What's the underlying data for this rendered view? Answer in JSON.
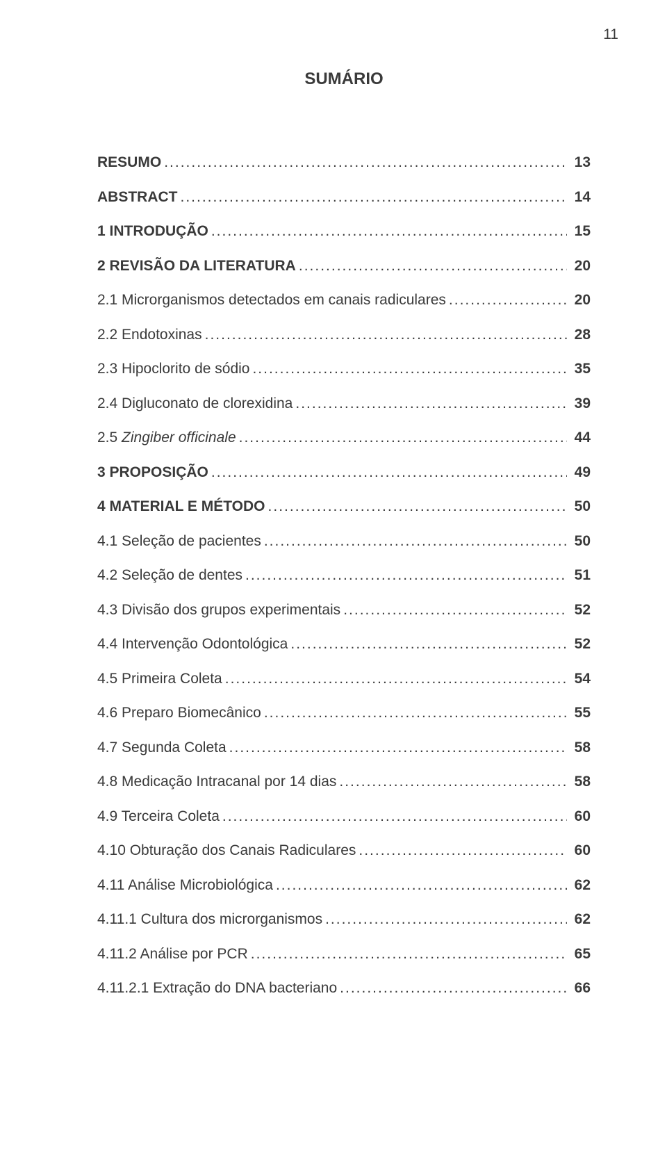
{
  "page_number": "11",
  "title": "SUMÁRIO",
  "text_color": "#3a3a3a",
  "background_color": "#ffffff",
  "font_size_body": 21,
  "font_size_title": 24,
  "entries": [
    {
      "label": "RESUMO",
      "page": "13",
      "bold": true
    },
    {
      "label": "ABSTRACT",
      "page": "14",
      "bold": true
    },
    {
      "label": "1 INTRODUÇÃO",
      "page": "15",
      "bold": true
    },
    {
      "label": "2 REVISÃO DA LITERATURA",
      "page": "20",
      "bold": true
    },
    {
      "label": "2.1 Microrganismos detectados em canais radiculares",
      "page": "20",
      "bold": false
    },
    {
      "label": "2.2 Endotoxinas",
      "page": "28",
      "bold": false
    },
    {
      "label": "2.3 Hipoclorito de sódio",
      "page": "35",
      "bold": false
    },
    {
      "label": "2.4 Digluconato de clorexidina",
      "page": "39",
      "bold": false
    },
    {
      "label_prefix": "2.5 ",
      "label_italic": "Zingiber officinale",
      "page": "44",
      "bold": false
    },
    {
      "label": "3 PROPOSIÇÃO",
      "page": "49",
      "bold": true
    },
    {
      "label": "4 MATERIAL E MÉTODO",
      "page": "50",
      "bold": true
    },
    {
      "label": "4.1 Seleção de pacientes",
      "page": "50",
      "bold": false
    },
    {
      "label": "4.2 Seleção de dentes",
      "page": "51",
      "bold": false
    },
    {
      "label": "4.3 Divisão dos grupos experimentais",
      "page": "52",
      "bold": false
    },
    {
      "label": "4.4 Intervenção Odontológica",
      "page": "52",
      "bold": false
    },
    {
      "label": "4.5 Primeira Coleta",
      "page": "54",
      "bold": false
    },
    {
      "label": "4.6 Preparo Biomecânico",
      "page": "55",
      "bold": false
    },
    {
      "label": "4.7 Segunda Coleta",
      "page": "58",
      "bold": false
    },
    {
      "label": "4.8 Medicação Intracanal por 14 dias",
      "page": "58",
      "bold": false
    },
    {
      "label": "4.9 Terceira Coleta",
      "page": "60",
      "bold": false
    },
    {
      "label": "4.10 Obturação dos Canais Radiculares",
      "page": "60",
      "bold": false
    },
    {
      "label": "4.11 Análise Microbiológica",
      "page": "62",
      "bold": false
    },
    {
      "label": "4.11.1 Cultura dos microrganismos",
      "page": "62",
      "bold": false
    },
    {
      "label": "4.11.2 Análise por PCR",
      "page": "65",
      "bold": false
    },
    {
      "label": "4.11.2.1 Extração do DNA bacteriano",
      "page": "66",
      "bold": false
    }
  ]
}
